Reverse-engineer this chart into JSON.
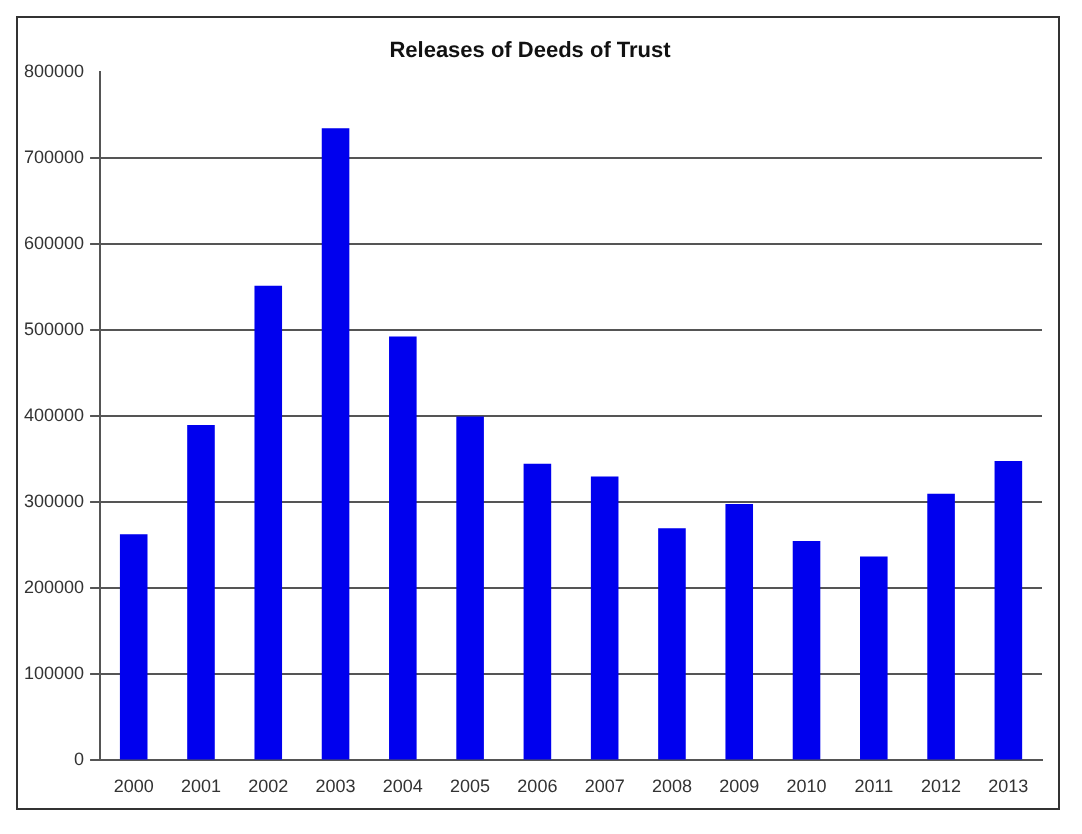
{
  "chart_data": {
    "type": "bar",
    "title": "Releases of Deeds of Trust",
    "categories": [
      "2000",
      "2001",
      "2002",
      "2003",
      "2004",
      "2005",
      "2006",
      "2007",
      "2008",
      "2009",
      "2010",
      "2011",
      "2012",
      "2013"
    ],
    "values": [
      263000,
      390000,
      552000,
      735000,
      493000,
      400000,
      345000,
      330000,
      270000,
      298000,
      255000,
      237000,
      310000,
      348000
    ],
    "color": "#0000ee",
    "ylim": [
      0,
      800000
    ],
    "yticks": [
      0,
      100000,
      200000,
      300000,
      400000,
      500000,
      600000,
      700000,
      800000
    ],
    "grid": "y",
    "legend": false
  }
}
